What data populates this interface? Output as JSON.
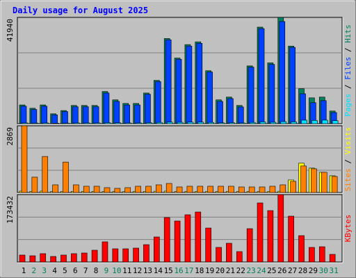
{
  "chart_data": [
    {
      "type": "bar",
      "title": "Daily usage for August 2025",
      "ylim": [
        0,
        41940
      ],
      "yticks": [
        41940
      ],
      "legend_separator": " / ",
      "series": [
        {
          "name": "Hits",
          "color": "#00805c",
          "values": [
            7400,
            6100,
            7400,
            3900,
            5200,
            7200,
            7200,
            7200,
            12700,
            9400,
            8000,
            8000,
            12100,
            17100,
            33600,
            25900,
            31200,
            32300,
            20900,
            9400,
            10500,
            7200,
            22800,
            38100,
            24000,
            41940,
            30600,
            13800,
            10200,
            10500,
            5000
          ]
        },
        {
          "name": "Files",
          "color": "#0040ff",
          "values": [
            6900,
            5600,
            6900,
            3500,
            4800,
            6700,
            6700,
            6700,
            12100,
            8800,
            7400,
            7400,
            11600,
            16600,
            33100,
            25400,
            30600,
            31700,
            20400,
            8800,
            9900,
            6600,
            22300,
            37500,
            23400,
            40300,
            30100,
            11800,
            8300,
            9100,
            4400
          ]
        },
        {
          "name": "Pages",
          "color": "#00e0ff",
          "values": [
            300,
            250,
            300,
            200,
            250,
            300,
            300,
            300,
            400,
            350,
            300,
            300,
            400,
            500,
            600,
            550,
            600,
            600,
            500,
            350,
            400,
            300,
            500,
            700,
            550,
            800,
            700,
            1400,
            1300,
            1400,
            1200
          ]
        }
      ]
    },
    {
      "type": "bar",
      "ylim": [
        0,
        2869
      ],
      "yticks": [
        2869
      ],
      "legend_separator": " / ",
      "series": [
        {
          "name": "Visits",
          "color": "#ffff00",
          "values": [
            60,
            50,
            60,
            40,
            50,
            50,
            50,
            50,
            45,
            40,
            45,
            50,
            50,
            55,
            60,
            45,
            50,
            50,
            50,
            50,
            50,
            45,
            45,
            45,
            50,
            55,
            540,
            1260,
            1050,
            870,
            720
          ]
        },
        {
          "name": "Sites",
          "color": "#ff8000",
          "values": [
            2869,
            660,
            1550,
            330,
            1310,
            330,
            270,
            270,
            210,
            180,
            210,
            270,
            270,
            330,
            390,
            240,
            270,
            270,
            270,
            270,
            270,
            240,
            240,
            240,
            270,
            330,
            480,
            1140,
            1020,
            870,
            690
          ]
        }
      ]
    },
    {
      "type": "bar",
      "ylim": [
        0,
        173432
      ],
      "yticks": [
        173432
      ],
      "categories": [
        "1",
        "2",
        "3",
        "4",
        "5",
        "6",
        "7",
        "8",
        "9",
        "10",
        "11",
        "12",
        "13",
        "14",
        "15",
        "16",
        "17",
        "18",
        "19",
        "20",
        "21",
        "22",
        "23",
        "24",
        "25",
        "26",
        "27",
        "28",
        "29",
        "30",
        "31"
      ],
      "category_colors": [
        "#000000",
        "#00805c",
        "#00805c",
        "#000000",
        "#000000",
        "#000000",
        "#000000",
        "#000000",
        "#00805c",
        "#00805c",
        "#000000",
        "#000000",
        "#000000",
        "#000000",
        "#000000",
        "#00805c",
        "#00805c",
        "#000000",
        "#000000",
        "#000000",
        "#000000",
        "#000000",
        "#00805c",
        "#00805c",
        "#000000",
        "#000000",
        "#000000",
        "#000000",
        "#000000",
        "#00805c",
        "#00805c"
      ],
      "series": [
        {
          "name": "KBytes",
          "color": "#ff0000",
          "values": [
            17900,
            16100,
            21500,
            14300,
            17900,
            21500,
            23200,
            30400,
            51900,
            34000,
            34000,
            35800,
            44700,
            64400,
            114400,
            105500,
            121600,
            128700,
            87500,
            37600,
            48300,
            26800,
            85800,
            152000,
            132300,
            173432,
            118000,
            67900,
            37600,
            39300,
            19700
          ]
        }
      ]
    }
  ]
}
